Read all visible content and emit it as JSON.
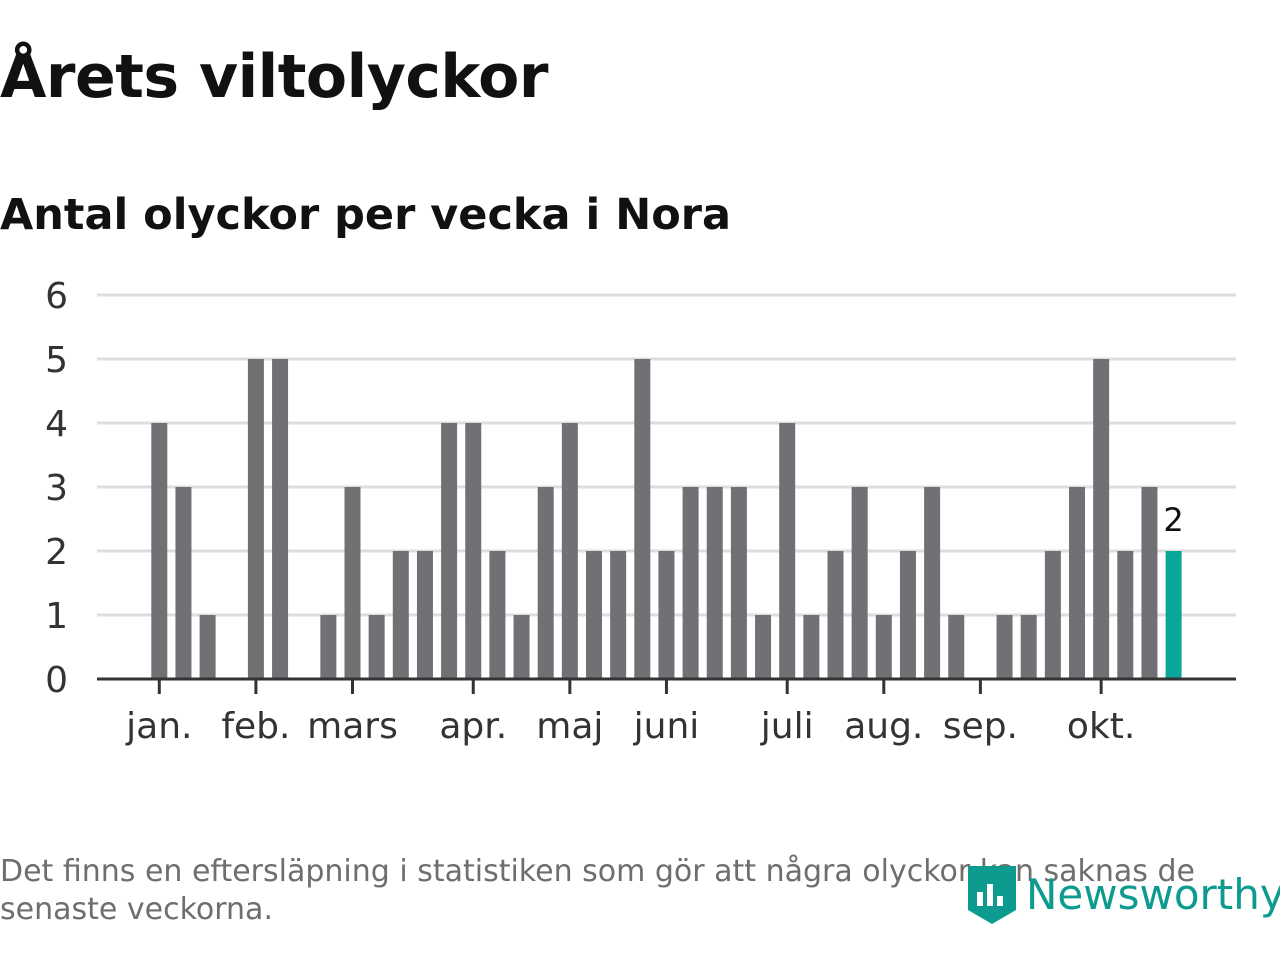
{
  "title": "Årets viltolyckor",
  "subtitle": "Antal olyckor per vecka i Nora",
  "footnote": "Det finns en eftersläpning i statistiken som gör att några olyckor kan saknas de senaste veckorna.",
  "brand": {
    "name": "Newsworthy",
    "icon": "newsworthy-logo-icon",
    "color": "#0d9b8f"
  },
  "colors": {
    "bar": "#707075",
    "highlight": "#0aa69a",
    "grid": "#dddddd",
    "axis": "#333333"
  },
  "chart_data": {
    "type": "bar",
    "ylim": [
      0,
      6
    ],
    "yticks": [
      0,
      1,
      2,
      3,
      4,
      5,
      6
    ],
    "grid": true,
    "month_labels": [
      {
        "label": "jan.",
        "week": 3
      },
      {
        "label": "feb.",
        "week": 7
      },
      {
        "label": "mars",
        "week": 11
      },
      {
        "label": "apr.",
        "week": 16
      },
      {
        "label": "maj",
        "week": 20
      },
      {
        "label": "juni",
        "week": 24
      },
      {
        "label": "juli",
        "week": 29
      },
      {
        "label": "aug.",
        "week": 33
      },
      {
        "label": "sep.",
        "week": 37
      },
      {
        "label": "okt.",
        "week": 42
      }
    ],
    "weeks": [
      1,
      2,
      3,
      4,
      5,
      6,
      7,
      8,
      9,
      10,
      11,
      12,
      13,
      14,
      15,
      16,
      17,
      18,
      19,
      20,
      21,
      22,
      23,
      24,
      25,
      26,
      27,
      28,
      29,
      30,
      31,
      32,
      33,
      34,
      35,
      36,
      37,
      38,
      39,
      40,
      41,
      42,
      43,
      44,
      45,
      46
    ],
    "values": [
      0,
      0,
      4,
      3,
      1,
      0,
      5,
      5,
      0,
      1,
      3,
      1,
      2,
      2,
      4,
      4,
      2,
      1,
      3,
      4,
      2,
      2,
      5,
      2,
      3,
      3,
      3,
      1,
      4,
      1,
      2,
      3,
      1,
      2,
      3,
      1,
      0,
      1,
      1,
      2,
      3,
      5,
      2,
      3,
      2,
      0
    ],
    "highlight_week": 45,
    "highlight_label": "2"
  }
}
